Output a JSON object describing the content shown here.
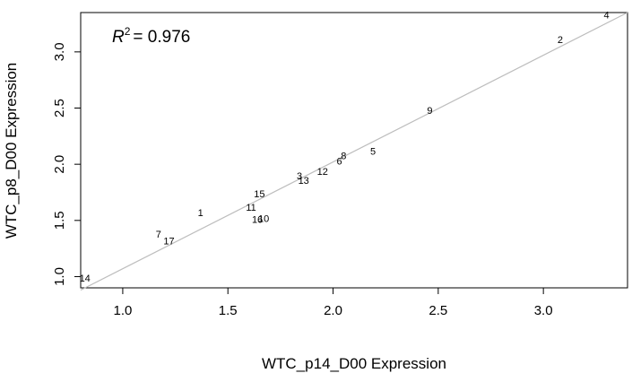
{
  "chart_data": {
    "type": "scatter",
    "xlabel": "WTC_p14_D00 Expression",
    "ylabel": "WTC_p8_D00 Expression",
    "xlim": [
      0.8,
      3.4
    ],
    "ylim": [
      0.9,
      3.35
    ],
    "xticks": [
      "1.0",
      "1.5",
      "2.0",
      "2.5",
      "3.0"
    ],
    "yticks": [
      "1.0",
      "1.5",
      "2.0",
      "2.5",
      "3.0"
    ],
    "grid": false,
    "annotation": {
      "symbol": "R",
      "superscript": "2",
      "value": "= 0.976"
    },
    "fit_line": {
      "color": "#bdbdbd",
      "x": [
        0.8,
        3.4
      ],
      "y": [
        0.88,
        3.35
      ]
    },
    "points": [
      {
        "label": "1",
        "x": 1.37,
        "y": 1.56
      },
      {
        "label": "2",
        "x": 3.08,
        "y": 3.1
      },
      {
        "label": "3",
        "x": 1.84,
        "y": 1.89
      },
      {
        "label": "4",
        "x": 3.3,
        "y": 3.32
      },
      {
        "label": "5",
        "x": 2.19,
        "y": 2.11
      },
      {
        "label": "6",
        "x": 2.03,
        "y": 2.02
      },
      {
        "label": "7",
        "x": 1.17,
        "y": 1.37
      },
      {
        "label": "8",
        "x": 2.05,
        "y": 2.07
      },
      {
        "label": "9",
        "x": 2.46,
        "y": 2.47
      },
      {
        "label": "10",
        "x": 1.67,
        "y": 1.51
      },
      {
        "label": "11",
        "x": 1.61,
        "y": 1.61
      },
      {
        "label": "12",
        "x": 1.95,
        "y": 1.93
      },
      {
        "label": "13",
        "x": 1.86,
        "y": 1.85
      },
      {
        "label": "14",
        "x": 0.82,
        "y": 0.98
      },
      {
        "label": "15",
        "x": 1.65,
        "y": 1.73
      },
      {
        "label": "16",
        "x": 1.64,
        "y": 1.5
      },
      {
        "label": "17",
        "x": 1.22,
        "y": 1.31
      }
    ]
  }
}
